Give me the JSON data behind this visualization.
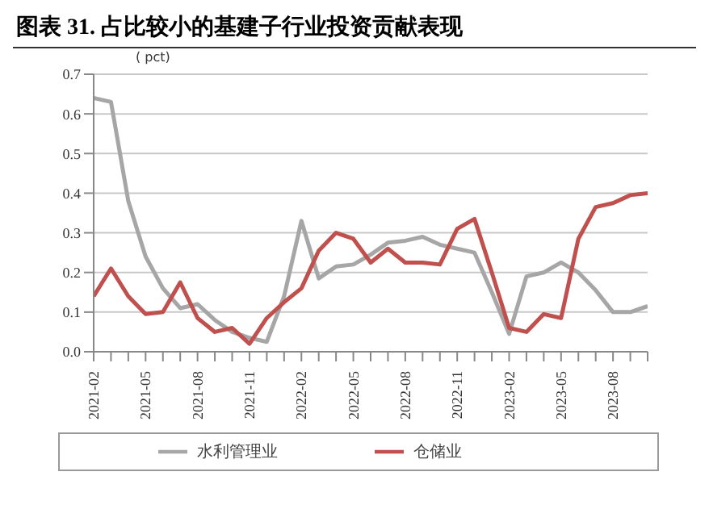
{
  "chart_data": {
    "type": "line",
    "title": "图表 31. 占比较小的基建子行业投资贡献表现",
    "ylabel": "( pct)",
    "categories": [
      "2021-02",
      null,
      null,
      "2021-05",
      null,
      null,
      "2021-08",
      null,
      null,
      "2021-11",
      null,
      null,
      "2022-02",
      null,
      null,
      "2022-05",
      null,
      null,
      "2022-08",
      null,
      null,
      "2022-11",
      null,
      null,
      "2023-02",
      null,
      null,
      "2023-05",
      null,
      null,
      "2023-08",
      null,
      null
    ],
    "series": [
      {
        "name": "水利管理业",
        "color": "#a6a6a6",
        "values": [
          0.64,
          0.63,
          0.38,
          0.24,
          0.16,
          0.11,
          0.12,
          0.08,
          0.05,
          0.035,
          0.025,
          0.14,
          0.33,
          0.185,
          0.215,
          0.22,
          0.245,
          0.275,
          0.28,
          0.29,
          0.27,
          0.26,
          0.25,
          0.15,
          0.045,
          0.19,
          0.2,
          0.225,
          0.2,
          0.155,
          0.1,
          0.1,
          0.115
        ]
      },
      {
        "name": "仓储业",
        "color": "#c0504d",
        "values": [
          0.14,
          0.21,
          0.14,
          0.095,
          0.1,
          0.175,
          0.085,
          0.05,
          0.06,
          0.02,
          0.085,
          0.125,
          0.16,
          0.255,
          0.3,
          0.285,
          0.225,
          0.26,
          0.225,
          0.225,
          0.22,
          0.31,
          0.335,
          0.2,
          0.06,
          0.05,
          0.095,
          0.085,
          0.285,
          0.365,
          0.375,
          0.395,
          0.4
        ]
      }
    ],
    "ylim": [
      0,
      0.7
    ],
    "yticks": [
      {
        "value": 0,
        "label": "0.0"
      },
      0.1,
      0.2,
      0.3,
      0.4,
      0.5,
      0.6,
      0.7
    ],
    "grid": "y",
    "legend": "bottom",
    "marker": "none",
    "line_style": "solid"
  }
}
